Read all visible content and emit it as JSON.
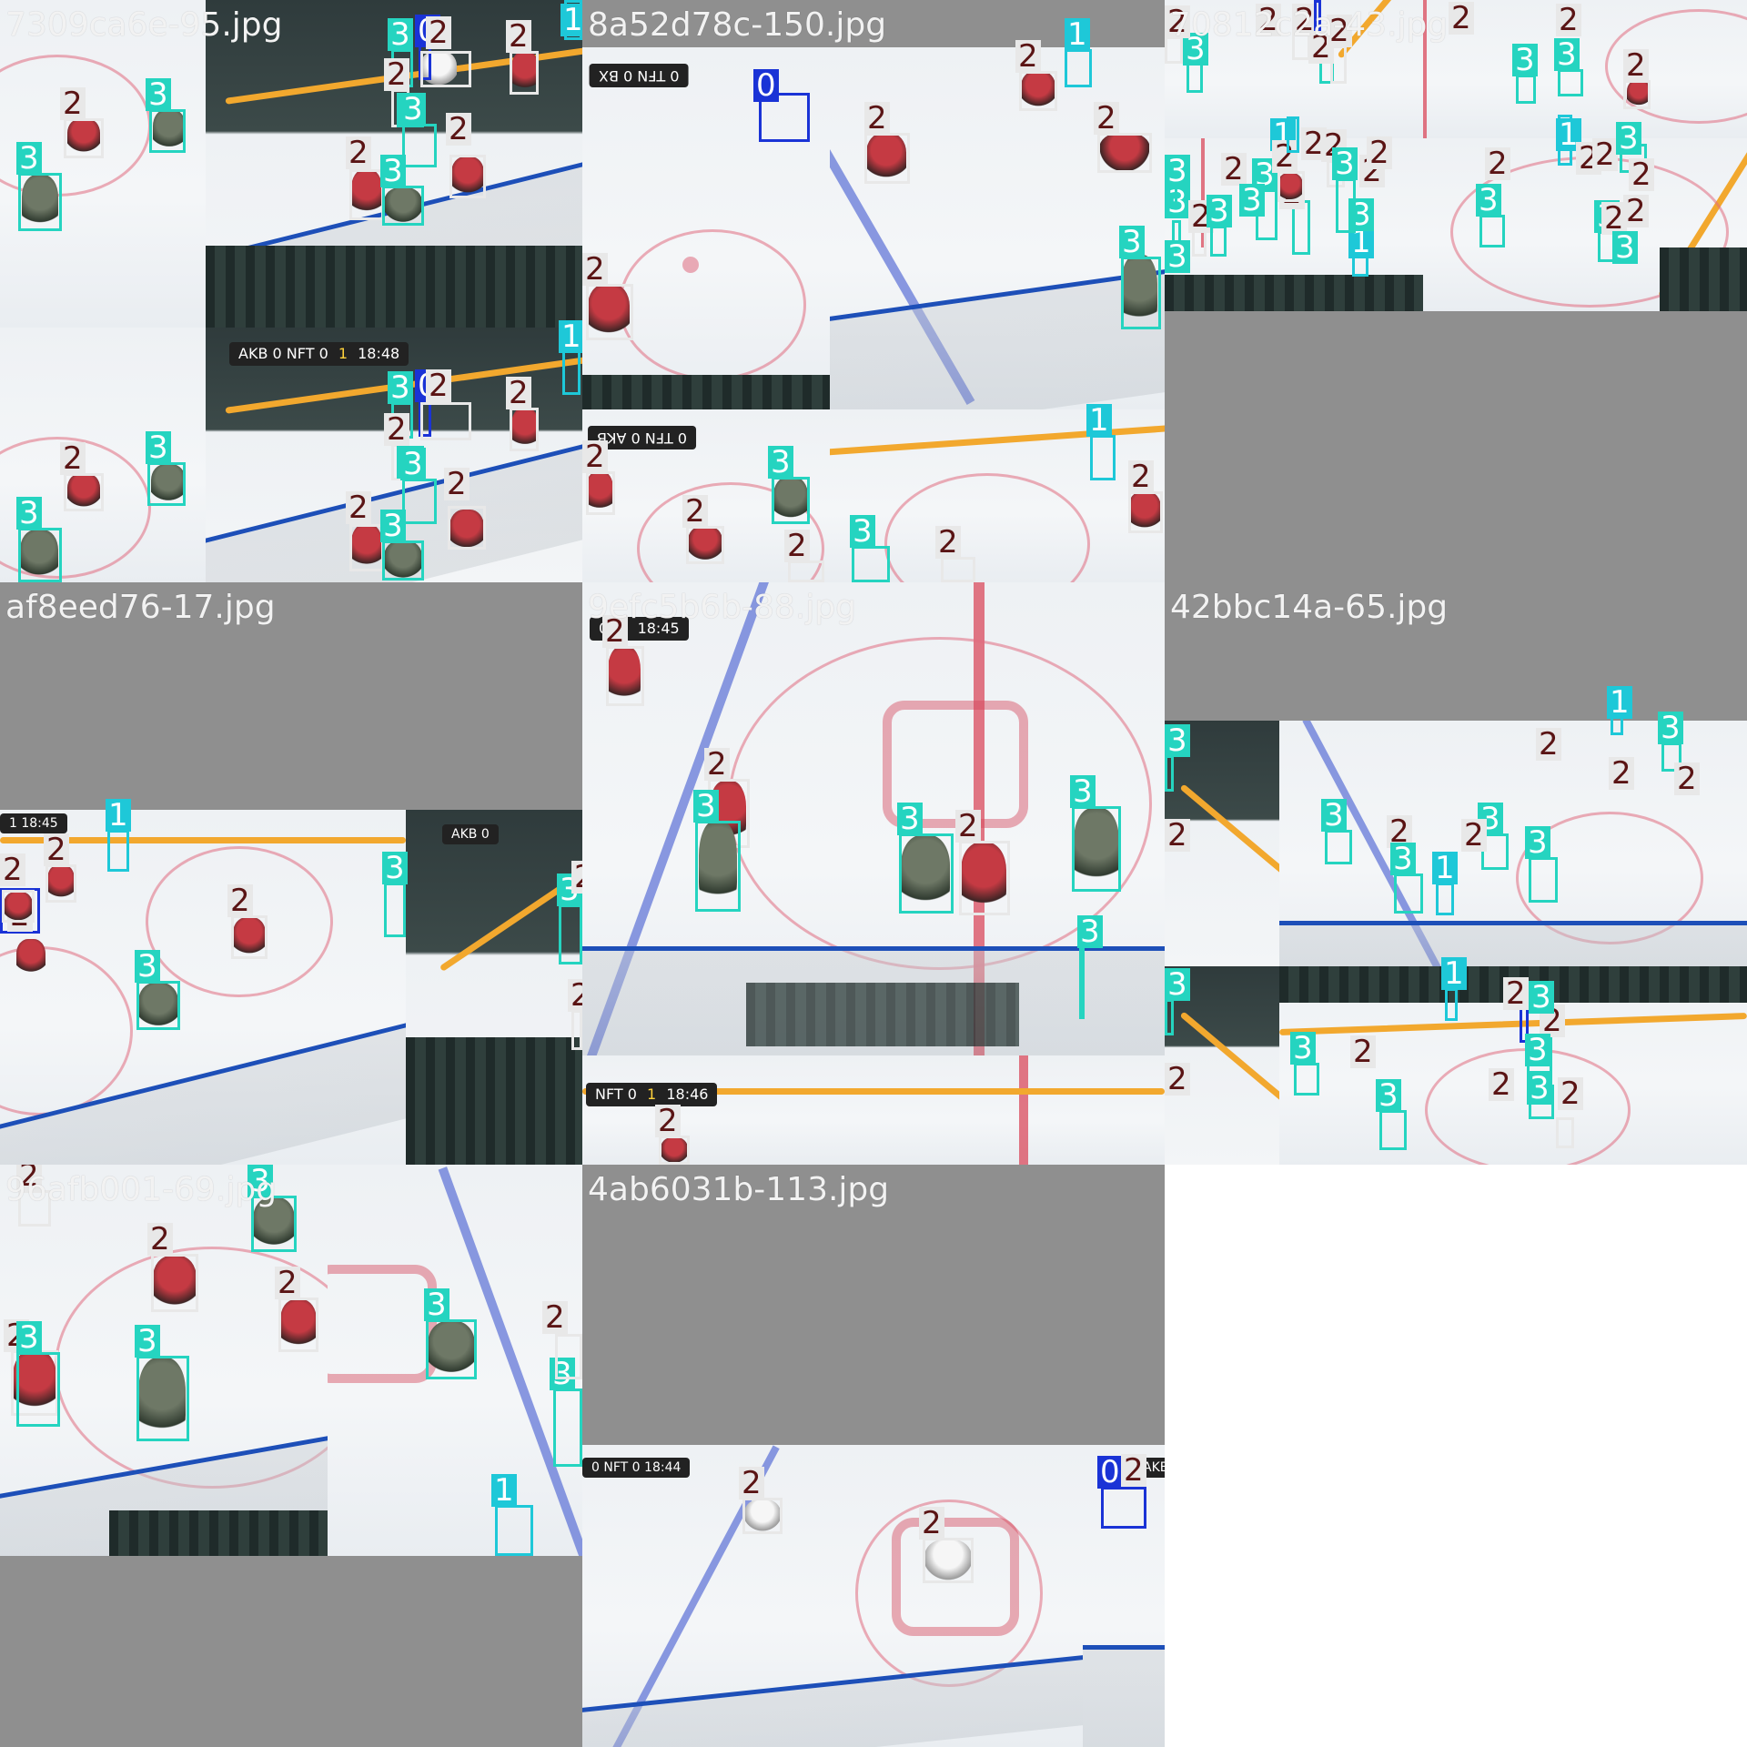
{
  "mosaic": {
    "tiles": [
      {
        "title": "7309ca6e-95.jpg"
      },
      {
        "title": "8a52d78c-150.jpg"
      },
      {
        "title": "70812c2a-43.jpg"
      },
      {
        "title": "af8eed76-17.jpg"
      },
      {
        "title": "9efc5b6b-88.jpg"
      },
      {
        "title": "42bbc14a-65.jpg"
      },
      {
        "title": "96afb001-69.jpg"
      },
      {
        "title": "4ab6031b-113.jpg"
      }
    ],
    "scoreboards": [
      {
        "t1": "AKB",
        "s1": "0",
        "t2": "NFT",
        "s2": "0",
        "period": "1",
        "clock": "18:48"
      },
      {
        "t1": "NFT",
        "s1": "0",
        "period": "1",
        "clock": "18:45"
      },
      {
        "t1": "NFT",
        "s1": "0",
        "period": "1",
        "clock": "18:46"
      },
      {
        "t1": "AKB",
        "s1": "0",
        "t2": "NFT",
        "s2": "0",
        "clock": "18:44"
      }
    ],
    "class_colors": {
      "0": "#1a33d6",
      "1": "#1ec8d8",
      "2": "#e8e8e8",
      "3": "#25d4c0"
    },
    "class_ids": [
      "0",
      "1",
      "2",
      "3"
    ]
  }
}
